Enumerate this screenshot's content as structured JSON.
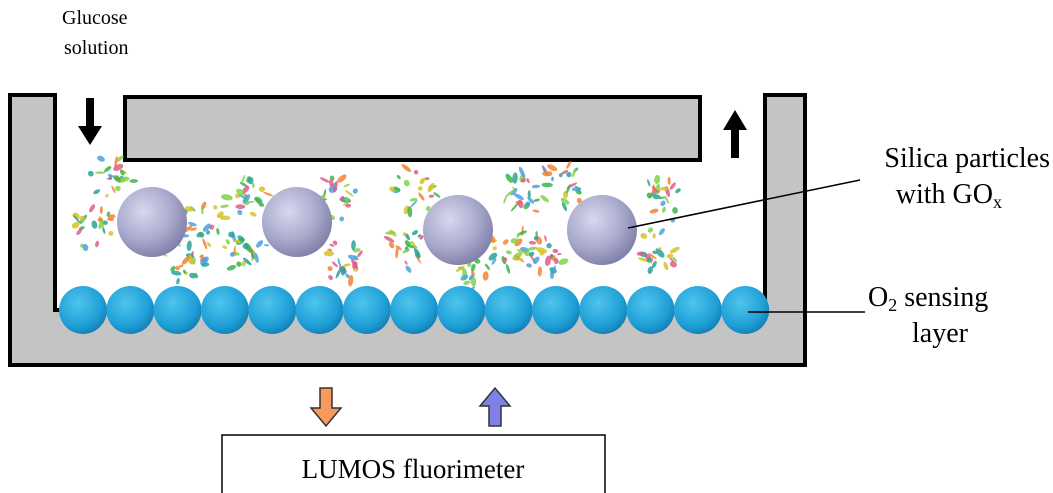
{
  "labels": {
    "glucose": [
      "Glucose",
      "solution"
    ],
    "silica": {
      "line1": "Silica particles",
      "line2": "with GO",
      "sub": "x"
    },
    "sensing": {
      "main": "O",
      "sub": "2",
      "rest": " sensing",
      "line2": "layer"
    },
    "fluorimeter": "LUMOS fluorimeter"
  }
}
